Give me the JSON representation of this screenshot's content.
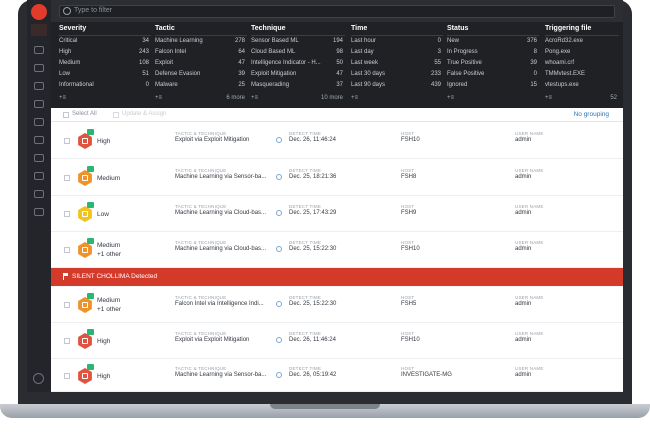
{
  "search": {
    "placeholder": "Type to filter"
  },
  "facets": {
    "severity": {
      "title": "Severity",
      "items": [
        {
          "label": "Critical",
          "count": "34"
        },
        {
          "label": "High",
          "count": "243"
        },
        {
          "label": "Medium",
          "count": "108"
        },
        {
          "label": "Low",
          "count": "51"
        },
        {
          "label": "Informational",
          "count": "0"
        }
      ],
      "more": "+≡"
    },
    "tactic": {
      "title": "Tactic",
      "items": [
        {
          "label": "Machine Learning",
          "count": "278"
        },
        {
          "label": "Falcon Intel",
          "count": "64"
        },
        {
          "label": "Exploit",
          "count": "47"
        },
        {
          "label": "Defense Evasion",
          "count": "39"
        },
        {
          "label": "Malware",
          "count": "25"
        }
      ],
      "more": "+≡",
      "more_count": "6 more"
    },
    "technique": {
      "title": "Technique",
      "items": [
        {
          "label": "Sensor Based ML",
          "count": "194"
        },
        {
          "label": "Cloud Based ML",
          "count": "98"
        },
        {
          "label": "Intelligence Indicator - H...",
          "count": "50"
        },
        {
          "label": "Exploit Mitigation",
          "count": "47"
        },
        {
          "label": "Masquerading",
          "count": "37"
        }
      ],
      "more": "+≡",
      "more_count": "10 more"
    },
    "time": {
      "title": "Time",
      "items": [
        {
          "label": "Last hour",
          "count": "0"
        },
        {
          "label": "Last day",
          "count": "3"
        },
        {
          "label": "Last week",
          "count": "55"
        },
        {
          "label": "Last 30 days",
          "count": "233"
        },
        {
          "label": "Last 90 days",
          "count": "439"
        }
      ],
      "more": "+≡"
    },
    "status": {
      "title": "Status",
      "items": [
        {
          "label": "New",
          "count": "376"
        },
        {
          "label": "In Progress",
          "count": "8"
        },
        {
          "label": "True Positive",
          "count": "39"
        },
        {
          "label": "False Positive",
          "count": "0"
        },
        {
          "label": "Ignored",
          "count": "15"
        }
      ],
      "more": "+≡"
    },
    "trigger": {
      "title": "Triggering file",
      "items": [
        {
          "label": "AcroRd32.exe",
          "count": ""
        },
        {
          "label": "Pong.exe",
          "count": ""
        },
        {
          "label": "whoami.crf",
          "count": ""
        },
        {
          "label": "TMMvtest.EXE",
          "count": ""
        },
        {
          "label": "vtestups.exe",
          "count": ""
        }
      ],
      "more": "+≡",
      "more_count": "52"
    }
  },
  "toolbar": {
    "select_all": "Select All",
    "assign": "Update & Assign",
    "grouping": "No grouping"
  },
  "labels": {
    "tactic": "TACTIC & TECHNIQUE",
    "time": "DETECT TIME",
    "host": "HOST",
    "user": "USER NAME"
  },
  "detections": [
    {
      "severity": "High",
      "extra": "",
      "color": "#e0533e",
      "tactic": "Exploit via Exploit Mitigation",
      "time": "Dec. 26, 11:46:24",
      "host": "FSH10",
      "user": "admin"
    },
    {
      "severity": "Medium",
      "extra": "",
      "color": "#f0922a",
      "tactic": "Machine Learning via Sensor-ba...",
      "time": "Dec. 25, 18:21:36",
      "host": "FSH8",
      "user": "admin"
    },
    {
      "severity": "Low",
      "extra": "",
      "color": "#f0c31e",
      "tactic": "Machine Learning via Cloud-bas...",
      "time": "Dec. 25, 17:43:29",
      "host": "FSH9",
      "user": "admin"
    },
    {
      "severity": "Medium",
      "extra": "+1 other",
      "color": "#f0922a",
      "tactic": "Machine Learning via Cloud-bas...",
      "time": "Dec. 25, 15:22:30",
      "host": "FSH10",
      "user": "admin"
    },
    {
      "severity": "Medium",
      "extra": "+1 other",
      "color": "#f0922a",
      "tactic": "Falcon Intel via Intelligence Indi...",
      "time": "Dec. 25, 15:22:30",
      "host": "FSH5",
      "user": "admin"
    },
    {
      "severity": "High",
      "extra": "",
      "color": "#e0533e",
      "tactic": "Exploit via Exploit Mitigation",
      "time": "Dec. 26, 11:46:24",
      "host": "FSH10",
      "user": "admin"
    },
    {
      "severity": "High",
      "extra": "",
      "color": "#e0533e",
      "tactic": "Machine Learning via Sensor-ba...",
      "time": "Dec. 26, 05:19:42",
      "host": "INVESTIGATE-MG",
      "user": "admin"
    }
  ],
  "banner": {
    "text": "SILENT CHOLLIMA Detected"
  }
}
